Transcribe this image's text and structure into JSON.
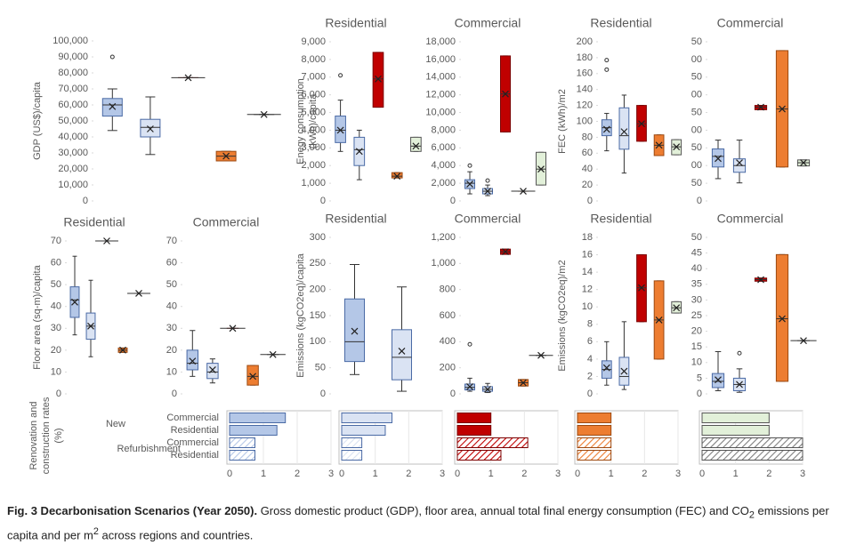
{
  "chart_data": [
    {
      "type": "box",
      "ylabel": [
        "GDP (US$)/capita"
      ],
      "ylim": [
        0,
        100000
      ],
      "yticks": [
        0,
        {
          "value": 10000,
          "label": "10,000"
        },
        {
          "value": 20000,
          "label": "20,000"
        },
        {
          "value": 30000,
          "label": "30,000"
        },
        {
          "value": 40000,
          "label": "40,000"
        },
        {
          "value": 50000,
          "label": "50,000"
        },
        {
          "value": 60000,
          "label": "60,000"
        },
        {
          "value": 70000,
          "label": "70,000"
        },
        {
          "value": 80000,
          "label": "80,000"
        },
        {
          "value": 90000,
          "label": "90,000"
        },
        {
          "value": 100000,
          "label": "100,000"
        }
      ],
      "boxes": [
        {
          "color": "#b4c7e7",
          "min": 44000,
          "q1": 53000,
          "median": 60000,
          "q3": 64000,
          "max": 70000,
          "mean": 59000,
          "outliers": [
            90000
          ]
        },
        {
          "color": "#dae3f3",
          "min": 29000,
          "q1": 40000,
          "median": 46000,
          "q3": 51000,
          "max": 65000,
          "mean": 45000,
          "outliers": []
        },
        {
          "color": "#c00000",
          "min": 77000,
          "q1": 77000,
          "median": 77000,
          "q3": 77000,
          "max": 77000,
          "mean": 77000,
          "outliers": []
        },
        {
          "color": "#ed7d31",
          "min": 25000,
          "q1": 25000,
          "median": 28000,
          "q3": 31000,
          "max": 31000,
          "mean": 28000,
          "outliers": []
        },
        {
          "color": "#e2f0d9",
          "min": 54000,
          "q1": 54000,
          "median": 54000,
          "q3": 54000,
          "max": 54000,
          "mean": 54000,
          "outliers": []
        }
      ]
    },
    {
      "type": "box",
      "title": "Residential",
      "ylabel": [
        "Enegy consumption",
        "(kWh)/capita"
      ],
      "ylim": [
        0,
        9000
      ],
      "yticks": [
        0,
        {
          "value": 1000,
          "label": "1,000"
        },
        {
          "value": 2000,
          "label": "2,000"
        },
        {
          "value": 3000,
          "label": "3,000"
        },
        {
          "value": 4000,
          "label": "4,000"
        },
        {
          "value": 5000,
          "label": "5,000"
        },
        {
          "value": 6000,
          "label": "6,000"
        },
        {
          "value": 7000,
          "label": "7,000"
        },
        {
          "value": 8000,
          "label": "8,000"
        },
        {
          "value": 9000,
          "label": "9,000"
        }
      ],
      "boxes": [
        {
          "color": "#b4c7e7",
          "min": 2800,
          "q1": 3300,
          "median": 4000,
          "q3": 4800,
          "max": 5700,
          "mean": 4000,
          "outliers": [
            7100
          ]
        },
        {
          "color": "#dae3f3",
          "min": 1200,
          "q1": 2000,
          "median": 2900,
          "q3": 3600,
          "max": 4000,
          "mean": 2800,
          "outliers": []
        },
        {
          "color": "#c00000",
          "min": 5300,
          "q1": 5300,
          "median": 6900,
          "q3": 8400,
          "max": 8400,
          "mean": 6900,
          "outliers": []
        },
        {
          "color": "#ed7d31",
          "min": 1300,
          "q1": 1300,
          "median": 1400,
          "q3": 1600,
          "max": 1600,
          "mean": 1400,
          "outliers": []
        },
        {
          "color": "#e2f0d9",
          "min": 2800,
          "q1": 2800,
          "median": 3100,
          "q3": 3600,
          "max": 3600,
          "mean": 3100,
          "outliers": []
        }
      ]
    },
    {
      "type": "box",
      "title": "Commercial",
      "ylim": [
        0,
        18000
      ],
      "yticks": [
        0,
        {
          "value": 2000,
          "label": "2,000"
        },
        {
          "value": 4000,
          "label": "4,000"
        },
        {
          "value": 6000,
          "label": "6,000"
        },
        {
          "value": 8000,
          "label": "8,000"
        },
        {
          "value": 10000,
          "label": "10,000"
        },
        {
          "value": 12000,
          "label": "12,000"
        },
        {
          "value": 14000,
          "label": "14,000"
        },
        {
          "value": 16000,
          "label": "16,000"
        },
        {
          "value": 18000,
          "label": "18,000"
        }
      ],
      "boxes": [
        {
          "color": "#b4c7e7",
          "min": 800,
          "q1": 1400,
          "median": 2000,
          "q3": 2400,
          "max": 3300,
          "mean": 1900,
          "outliers": [
            4000
          ]
        },
        {
          "color": "#dae3f3",
          "min": 600,
          "q1": 800,
          "median": 1100,
          "q3": 1400,
          "max": 1800,
          "mean": 1100,
          "outliers": [
            2300
          ]
        },
        {
          "color": "#c00000",
          "min": 7800,
          "q1": 7800,
          "median": 12100,
          "q3": 16400,
          "max": 16400,
          "mean": 12100,
          "outliers": []
        },
        {
          "color": "#ed7d31",
          "min": 1100,
          "q1": 1100,
          "median": 1100,
          "q3": 1100,
          "max": 1100,
          "mean": 1100,
          "outliers": []
        },
        {
          "color": "#e2f0d9",
          "min": 1800,
          "q1": 1800,
          "median": 3600,
          "q3": 5500,
          "max": 5500,
          "mean": 3600,
          "outliers": []
        }
      ]
    },
    {
      "type": "box",
      "title": "Residential",
      "ylabel": [
        "FEC (kWh)/m2"
      ],
      "ylim": [
        0,
        200
      ],
      "yticks": [
        0,
        20,
        40,
        60,
        80,
        100,
        120,
        140,
        160,
        180,
        200
      ],
      "boxes": [
        {
          "color": "#b4c7e7",
          "min": 63,
          "q1": 82,
          "median": 92,
          "q3": 102,
          "max": 110,
          "mean": 90,
          "outliers": [
            165,
            177
          ]
        },
        {
          "color": "#dae3f3",
          "min": 35,
          "q1": 65,
          "median": 82,
          "q3": 117,
          "max": 133,
          "mean": 87,
          "outliers": []
        },
        {
          "color": "#c00000",
          "min": 75,
          "q1": 75,
          "median": 97,
          "q3": 120,
          "max": 120,
          "mean": 97,
          "outliers": []
        },
        {
          "color": "#ed7d31",
          "min": 57,
          "q1": 57,
          "median": 70,
          "q3": 83,
          "max": 83,
          "mean": 70,
          "outliers": []
        },
        {
          "color": "#e2f0d9",
          "min": 58,
          "q1": 58,
          "median": 68,
          "q3": 77,
          "max": 77,
          "mean": 68,
          "outliers": []
        }
      ]
    },
    {
      "type": "box",
      "title": "Commercial",
      "ylim": [
        0,
        450
      ],
      "yticks": [
        0,
        50,
        {
          "value": 100,
          "label": "00"
        },
        {
          "value": 150,
          "label": "50"
        },
        {
          "value": 200,
          "label": "00"
        },
        {
          "value": 250,
          "label": "50"
        },
        {
          "value": 300,
          "label": "00"
        },
        {
          "value": 350,
          "label": "50"
        },
        {
          "value": 400,
          "label": "00"
        },
        {
          "value": 450,
          "label": "50"
        }
      ],
      "boxes": [
        {
          "color": "#b4c7e7",
          "min": 63,
          "q1": 96,
          "median": 126,
          "q3": 147,
          "max": 172,
          "mean": 120,
          "outliers": []
        },
        {
          "color": "#dae3f3",
          "min": 51,
          "q1": 81,
          "median": 100,
          "q3": 119,
          "max": 172,
          "mean": 108,
          "outliers": []
        },
        {
          "color": "#c00000",
          "min": 258,
          "q1": 258,
          "median": 265,
          "q3": 270,
          "max": 270,
          "mean": 265,
          "outliers": []
        },
        {
          "color": "#ed7d31",
          "min": 96,
          "q1": 96,
          "median": 260,
          "q3": 425,
          "max": 425,
          "mean": 260,
          "outliers": []
        },
        {
          "color": "#e2f0d9",
          "min": 99,
          "q1": 99,
          "median": 108,
          "q3": 116,
          "max": 116,
          "mean": 108,
          "outliers": []
        }
      ]
    },
    {
      "type": "box",
      "title": "Residential",
      "ylabel": [
        "Floor area (sq-m)/capita"
      ],
      "ylim": [
        0,
        70
      ],
      "yticks": [
        0,
        10,
        20,
        30,
        40,
        50,
        60,
        70
      ],
      "boxes": [
        {
          "color": "#b4c7e7",
          "min": 27,
          "q1": 35,
          "median": 43,
          "q3": 49,
          "max": 63,
          "mean": 42,
          "outliers": []
        },
        {
          "color": "#dae3f3",
          "min": 17,
          "q1": 25,
          "median": 31,
          "q3": 37,
          "max": 52,
          "mean": 31,
          "outliers": []
        },
        {
          "color": "#c00000",
          "min": 70,
          "q1": 70,
          "median": 70,
          "q3": 70,
          "max": 70,
          "mean": 70,
          "outliers": []
        },
        {
          "color": "#ed7d31",
          "min": 19,
          "q1": 19,
          "median": 20,
          "q3": 21,
          "max": 21,
          "mean": 20,
          "outliers": []
        },
        {
          "color": "#e2f0d9",
          "min": 46,
          "q1": 46,
          "median": 46,
          "q3": 46,
          "max": 46,
          "mean": 46,
          "outliers": []
        }
      ]
    },
    {
      "type": "box",
      "title": "Commercial",
      "ylim": [
        0,
        70
      ],
      "yticks": [
        0,
        10,
        20,
        30,
        40,
        50,
        60,
        70
      ],
      "boxes": [
        {
          "color": "#b4c7e7",
          "min": 8,
          "q1": 11,
          "median": 14,
          "q3": 20,
          "max": 29,
          "mean": 15,
          "outliers": []
        },
        {
          "color": "#dae3f3",
          "min": 5,
          "q1": 7,
          "median": 10,
          "q3": 14,
          "max": 16,
          "mean": 11,
          "outliers": []
        },
        {
          "color": "#c00000",
          "min": 30,
          "q1": 30,
          "median": 30,
          "q3": 30,
          "max": 30,
          "mean": 30,
          "outliers": []
        },
        {
          "color": "#ed7d31",
          "min": 4,
          "q1": 4,
          "median": 8,
          "q3": 13,
          "max": 13,
          "mean": 8,
          "outliers": []
        },
        {
          "color": "#e2f0d9",
          "min": 18,
          "q1": 18,
          "median": 18,
          "q3": 18,
          "max": 18,
          "mean": 18,
          "outliers": []
        }
      ]
    },
    {
      "type": "box",
      "title": "Residential",
      "ylabel": [
        "Emissions (kgCO2eq)/capita"
      ],
      "ylim": [
        0,
        300
      ],
      "yticks": [
        0,
        50,
        100,
        150,
        200,
        250,
        300
      ],
      "boxes": [
        {
          "color": "#b4c7e7",
          "min": 37,
          "q1": 62,
          "median": 100,
          "q3": 182,
          "max": 248,
          "mean": 120,
          "outliers": []
        },
        {
          "color": "#dae3f3",
          "min": 5,
          "q1": 27,
          "median": 70,
          "q3": 123,
          "max": 205,
          "mean": 82,
          "outliers": []
        }
      ]
    },
    {
      "type": "box",
      "title": "Commercial",
      "ylim": [
        0,
        1200
      ],
      "yticks": [
        0,
        200,
        400,
        600,
        800,
        {
          "value": 1000,
          "label": "1,000"
        },
        {
          "value": 1200,
          "label": "1,200"
        }
      ],
      "boxes": [
        {
          "color": "#b4c7e7",
          "min": 20,
          "q1": 30,
          "median": 50,
          "q3": 75,
          "max": 120,
          "mean": 55,
          "outliers": [
            380
          ]
        },
        {
          "color": "#dae3f3",
          "min": 10,
          "q1": 20,
          "median": 35,
          "q3": 55,
          "max": 80,
          "mean": 35,
          "outliers": []
        },
        {
          "color": "#c00000",
          "min": 1070,
          "q1": 1070,
          "median": 1090,
          "q3": 1110,
          "max": 1110,
          "mean": 1090,
          "outliers": []
        },
        {
          "color": "#ed7d31",
          "min": 60,
          "q1": 60,
          "median": 85,
          "q3": 110,
          "max": 110,
          "mean": 85,
          "outliers": []
        },
        {
          "color": "#e2f0d9",
          "min": 295,
          "q1": 295,
          "median": 295,
          "q3": 295,
          "max": 295,
          "mean": 295,
          "outliers": []
        }
      ]
    },
    {
      "type": "box",
      "title": "Residential",
      "ylabel": [
        "Emissions (kgCO2eq)/m2"
      ],
      "ylim": [
        0,
        18
      ],
      "yticks": [
        0,
        2,
        4,
        6,
        8,
        10,
        12,
        14,
        16,
        18
      ],
      "boxes": [
        {
          "color": "#b4c7e7",
          "min": 1,
          "q1": 1.8,
          "median": 2.8,
          "q3": 3.8,
          "max": 6,
          "mean": 3,
          "outliers": []
        },
        {
          "color": "#dae3f3",
          "min": 0.5,
          "q1": 1,
          "median": 2,
          "q3": 4.2,
          "max": 8.3,
          "mean": 2.6,
          "outliers": []
        },
        {
          "color": "#c00000",
          "min": 8.3,
          "q1": 8.3,
          "median": 12.2,
          "q3": 16,
          "max": 16,
          "mean": 12.2,
          "outliers": []
        },
        {
          "color": "#ed7d31",
          "min": 4,
          "q1": 4,
          "median": 8.5,
          "q3": 13,
          "max": 13,
          "mean": 8.5,
          "outliers": []
        },
        {
          "color": "#e2f0d9",
          "min": 9.3,
          "q1": 9.3,
          "median": 9.9,
          "q3": 10.6,
          "max": 10.6,
          "mean": 9.9,
          "outliers": []
        }
      ]
    },
    {
      "type": "box",
      "title": "Commercial",
      "ylim": [
        0,
        50
      ],
      "yticks": [
        0,
        5,
        10,
        15,
        20,
        25,
        30,
        35,
        40,
        45,
        50
      ],
      "boxes": [
        {
          "color": "#b4c7e7",
          "min": 1,
          "q1": 2,
          "median": 4,
          "q3": 6.5,
          "max": 13.5,
          "mean": 4.5,
          "outliers": []
        },
        {
          "color": "#dae3f3",
          "min": 0.5,
          "q1": 1,
          "median": 3,
          "q3": 5,
          "max": 8,
          "mean": 3,
          "outliers": [
            13
          ]
        },
        {
          "color": "#c00000",
          "min": 36,
          "q1": 36,
          "median": 36.5,
          "q3": 37,
          "max": 37,
          "mean": 36.5,
          "outliers": []
        },
        {
          "color": "#ed7d31",
          "min": 4,
          "q1": 4,
          "median": 24,
          "q3": 44.5,
          "max": 44.5,
          "mean": 24,
          "outliers": []
        },
        {
          "color": "#e2f0d9",
          "min": 17,
          "q1": 17,
          "median": 17,
          "q3": 17,
          "max": 17,
          "mean": 17,
          "outliers": []
        }
      ]
    },
    {
      "type": "hbar",
      "ylabel": [
        "Renovation and",
        "construction rates",
        "(%)"
      ],
      "groups": [
        "New",
        "Refurbishment"
      ],
      "categories": [
        "Commercial",
        "Residential",
        "Commercial",
        "Residential"
      ],
      "hatched": [
        false,
        false,
        true,
        true
      ],
      "xlim": [
        0,
        3
      ],
      "xticks": [
        0,
        1,
        2,
        3
      ],
      "grid": true,
      "panels": [
        {
          "color": "#b4c7e7",
          "values": [
            1.65,
            1.4,
            0.75,
            0.75
          ]
        },
        {
          "color": "#dae3f3",
          "values": [
            1.5,
            1.3,
            0.6,
            0.6
          ]
        },
        {
          "color": "#c00000",
          "values": [
            1.0,
            1.0,
            2.1,
            1.3
          ]
        },
        {
          "color": "#ed7d31",
          "values": [
            1.0,
            1.0,
            1.0,
            1.0
          ]
        },
        {
          "color": "#e2f0d9",
          "values": [
            2.0,
            2.0,
            3.0,
            3.0
          ]
        }
      ]
    }
  ],
  "caption": {
    "label": "Fig. 3 Decarbonisation Scenarios (Year 2050).",
    "text": [
      "Gross domestic product (GDP), floor area, annual total final energy consumption (FEC) and CO",
      "2",
      " emissions per capita and per m",
      "2",
      " across regions and countries."
    ]
  }
}
